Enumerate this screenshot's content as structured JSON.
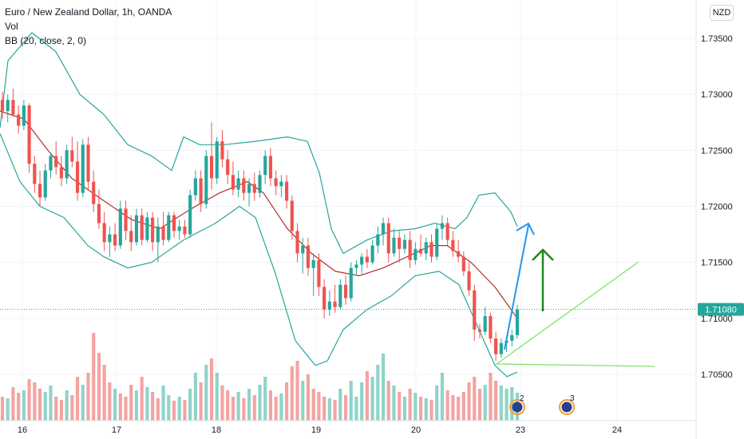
{
  "legend": {
    "title": "Euro / New Zealand Dollar, 1h, OANDA",
    "vol": "Vol",
    "bb": "BB (20, close, 2, 0)"
  },
  "currency_button": "NZD",
  "colors": {
    "up": "#26a69a",
    "down": "#ef5350",
    "vol_up": "#8fd3c9",
    "vol_down": "#f5a3a1",
    "bb_band": "#26a69a",
    "bb_basis": "#b3312b",
    "price_line": "#26a69a",
    "arrow_blue": "#2196f3",
    "arrow_green": "#1b8a1b",
    "line_green": "#7ee56a",
    "badge_blue": "#2a3f8f",
    "badge_orange": "#f0a030"
  },
  "chart_data": {
    "type": "candlestick",
    "symbol": "Euro / New Zealand Dollar",
    "interval": "1h",
    "x_tick_labels": [
      "16",
      "17",
      "18",
      "19",
      "20",
      "23",
      "24"
    ],
    "y_ticks": [
      "1.73500",
      "1.73000",
      "1.72500",
      "1.72000",
      "1.71500",
      "1.71000",
      "1.70500"
    ],
    "ylim": [
      1.7015,
      1.7375
    ],
    "current_price": "1.71080",
    "candles": [
      [
        1.7295,
        1.7302,
        1.7278,
        1.7285
      ],
      [
        1.7285,
        1.73,
        1.7275,
        1.7295
      ],
      [
        1.7295,
        1.7305,
        1.728,
        1.7282
      ],
      [
        1.7282,
        1.729,
        1.7265,
        1.7272
      ],
      [
        1.7272,
        1.7295,
        1.7268,
        1.729
      ],
      [
        1.729,
        1.7292,
        1.723,
        1.7238
      ],
      [
        1.7238,
        1.7245,
        1.7212,
        1.722
      ],
      [
        1.722,
        1.7232,
        1.72,
        1.7208
      ],
      [
        1.7208,
        1.7238,
        1.7205,
        1.7232
      ],
      [
        1.7232,
        1.7248,
        1.7225,
        1.7245
      ],
      [
        1.7245,
        1.7258,
        1.7228,
        1.7235
      ],
      [
        1.7235,
        1.7245,
        1.7218,
        1.7225
      ],
      [
        1.7225,
        1.7255,
        1.722,
        1.725
      ],
      [
        1.725,
        1.7262,
        1.7235,
        1.724
      ],
      [
        1.724,
        1.7258,
        1.7205,
        1.7212
      ],
      [
        1.7212,
        1.726,
        1.7208,
        1.7255
      ],
      [
        1.7255,
        1.7262,
        1.7215,
        1.7222
      ],
      [
        1.7222,
        1.7232,
        1.7195,
        1.7202
      ],
      [
        1.7202,
        1.7215,
        1.718,
        1.7185
      ],
      [
        1.7185,
        1.7195,
        1.716,
        1.7168
      ],
      [
        1.7168,
        1.7182,
        1.7155,
        1.7175
      ],
      [
        1.7175,
        1.7185,
        1.716,
        1.7165
      ],
      [
        1.7165,
        1.7205,
        1.7162,
        1.7198
      ],
      [
        1.7198,
        1.7205,
        1.717,
        1.7178
      ],
      [
        1.7178,
        1.7192,
        1.716,
        1.7168
      ],
      [
        1.7168,
        1.7198,
        1.7165,
        1.7192
      ],
      [
        1.7192,
        1.7198,
        1.7165,
        1.717
      ],
      [
        1.717,
        1.7195,
        1.7168,
        1.719
      ],
      [
        1.719,
        1.7195,
        1.716,
        1.7168
      ],
      [
        1.7168,
        1.719,
        1.715,
        1.7182
      ],
      [
        1.7182,
        1.7195,
        1.7165,
        1.717
      ],
      [
        1.717,
        1.7195,
        1.7168,
        1.7192
      ],
      [
        1.7192,
        1.7195,
        1.7172,
        1.7178
      ],
      [
        1.7178,
        1.7188,
        1.717,
        1.7182
      ],
      [
        1.7182,
        1.7188,
        1.7172,
        1.7175
      ],
      [
        1.7175,
        1.7215,
        1.7172,
        1.721
      ],
      [
        1.721,
        1.7232,
        1.7205,
        1.7225
      ],
      [
        1.7225,
        1.7232,
        1.7195,
        1.7202
      ],
      [
        1.7202,
        1.725,
        1.7198,
        1.7245
      ],
      [
        1.7245,
        1.7275,
        1.7215,
        1.7225
      ],
      [
        1.7225,
        1.7262,
        1.722,
        1.7258
      ],
      [
        1.7258,
        1.7268,
        1.7235,
        1.7242
      ],
      [
        1.7242,
        1.725,
        1.722,
        1.7228
      ],
      [
        1.7228,
        1.724,
        1.721,
        1.7215
      ],
      [
        1.7215,
        1.7232,
        1.7208,
        1.7225
      ],
      [
        1.7225,
        1.7232,
        1.7205,
        1.7212
      ],
      [
        1.7212,
        1.7225,
        1.72,
        1.722
      ],
      [
        1.722,
        1.723,
        1.7205,
        1.7212
      ],
      [
        1.7212,
        1.7232,
        1.7208,
        1.7228
      ],
      [
        1.7228,
        1.725,
        1.722,
        1.7245
      ],
      [
        1.7245,
        1.7252,
        1.7218,
        1.7225
      ],
      [
        1.7225,
        1.7232,
        1.721,
        1.7218
      ],
      [
        1.7218,
        1.7228,
        1.7208,
        1.7222
      ],
      [
        1.7222,
        1.7228,
        1.7198,
        1.7205
      ],
      [
        1.7205,
        1.721,
        1.717,
        1.7178
      ],
      [
        1.7178,
        1.7185,
        1.715,
        1.7158
      ],
      [
        1.7158,
        1.7172,
        1.714,
        1.7165
      ],
      [
        1.7165,
        1.7172,
        1.7138,
        1.7145
      ],
      [
        1.7145,
        1.7158,
        1.712,
        1.7152
      ],
      [
        1.7152,
        1.7158,
        1.712,
        1.7128
      ],
      [
        1.7128,
        1.7135,
        1.71,
        1.7108
      ],
      [
        1.7108,
        1.7125,
        1.7102,
        1.7115
      ],
      [
        1.7115,
        1.713,
        1.7105,
        1.711
      ],
      [
        1.711,
        1.7135,
        1.7108,
        1.713
      ],
      [
        1.713,
        1.7138,
        1.7112,
        1.7118
      ],
      [
        1.7118,
        1.715,
        1.7115,
        1.7145
      ],
      [
        1.7145,
        1.7152,
        1.7138,
        1.7148
      ],
      [
        1.7148,
        1.7158,
        1.714,
        1.7155
      ],
      [
        1.7155,
        1.7162,
        1.7145,
        1.715
      ],
      [
        1.715,
        1.717,
        1.7148,
        1.7165
      ],
      [
        1.7165,
        1.7182,
        1.7158,
        1.7175
      ],
      [
        1.7175,
        1.719,
        1.7165,
        1.7185
      ],
      [
        1.7185,
        1.719,
        1.715,
        1.7158
      ],
      [
        1.7158,
        1.718,
        1.7155,
        1.7172
      ],
      [
        1.7172,
        1.7178,
        1.715,
        1.7162
      ],
      [
        1.7162,
        1.7175,
        1.7158,
        1.717
      ],
      [
        1.717,
        1.7178,
        1.7145,
        1.7152
      ],
      [
        1.7152,
        1.7168,
        1.7148,
        1.7162
      ],
      [
        1.7162,
        1.7175,
        1.7155,
        1.7158
      ],
      [
        1.7158,
        1.7172,
        1.7152,
        1.7168
      ],
      [
        1.7168,
        1.7175,
        1.715,
        1.7155
      ],
      [
        1.7155,
        1.7185,
        1.7152,
        1.718
      ],
      [
        1.718,
        1.7192,
        1.717,
        1.7185
      ],
      [
        1.7185,
        1.719,
        1.7165,
        1.717
      ],
      [
        1.717,
        1.7178,
        1.7155,
        1.716
      ],
      [
        1.716,
        1.717,
        1.715,
        1.7155
      ],
      [
        1.7155,
        1.716,
        1.7138,
        1.7142
      ],
      [
        1.7142,
        1.715,
        1.712,
        1.7125
      ],
      [
        1.7125,
        1.713,
        1.708,
        1.709
      ],
      [
        1.709,
        1.7095,
        1.7082,
        1.7088
      ],
      [
        1.7088,
        1.711,
        1.7085,
        1.7102
      ],
      [
        1.7102,
        1.7105,
        1.7078,
        1.7082
      ],
      [
        1.7082,
        1.7088,
        1.7062,
        1.7068
      ],
      [
        1.7068,
        1.7082,
        1.7065,
        1.7078
      ],
      [
        1.7078,
        1.7085,
        1.707,
        1.708
      ],
      [
        1.708,
        1.709,
        1.7075,
        1.7085
      ],
      [
        1.7085,
        1.7112,
        1.7082,
        1.7108
      ]
    ],
    "volume": [
      [
        30,
        0
      ],
      [
        28,
        1
      ],
      [
        42,
        0
      ],
      [
        35,
        0
      ],
      [
        38,
        1
      ],
      [
        52,
        0
      ],
      [
        48,
        0
      ],
      [
        40,
        0
      ],
      [
        36,
        1
      ],
      [
        44,
        1
      ],
      [
        30,
        0
      ],
      [
        26,
        0
      ],
      [
        38,
        1
      ],
      [
        32,
        0
      ],
      [
        55,
        0
      ],
      [
        45,
        1
      ],
      [
        60,
        0
      ],
      [
        110,
        0
      ],
      [
        85,
        0
      ],
      [
        70,
        0
      ],
      [
        48,
        0
      ],
      [
        40,
        1
      ],
      [
        34,
        0
      ],
      [
        30,
        0
      ],
      [
        45,
        0
      ],
      [
        38,
        1
      ],
      [
        55,
        0
      ],
      [
        42,
        1
      ],
      [
        36,
        0
      ],
      [
        28,
        0
      ],
      [
        44,
        1
      ],
      [
        32,
        1
      ],
      [
        25,
        0
      ],
      [
        30,
        1
      ],
      [
        26,
        0
      ],
      [
        40,
        1
      ],
      [
        60,
        1
      ],
      [
        48,
        0
      ],
      [
        70,
        1
      ],
      [
        78,
        0
      ],
      [
        60,
        1
      ],
      [
        44,
        0
      ],
      [
        38,
        0
      ],
      [
        30,
        0
      ],
      [
        36,
        1
      ],
      [
        28,
        0
      ],
      [
        40,
        1
      ],
      [
        32,
        0
      ],
      [
        45,
        1
      ],
      [
        55,
        1
      ],
      [
        38,
        0
      ],
      [
        30,
        0
      ],
      [
        34,
        1
      ],
      [
        48,
        0
      ],
      [
        68,
        0
      ],
      [
        75,
        0
      ],
      [
        50,
        1
      ],
      [
        58,
        0
      ],
      [
        40,
        0
      ],
      [
        36,
        0
      ],
      [
        30,
        0
      ],
      [
        28,
        1
      ],
      [
        26,
        0
      ],
      [
        40,
        1
      ],
      [
        32,
        0
      ],
      [
        50,
        1
      ],
      [
        30,
        1
      ],
      [
        48,
        1
      ],
      [
        62,
        0
      ],
      [
        55,
        1
      ],
      [
        70,
        1
      ],
      [
        84,
        1
      ],
      [
        50,
        0
      ],
      [
        44,
        1
      ],
      [
        36,
        0
      ],
      [
        30,
        1
      ],
      [
        40,
        0
      ],
      [
        35,
        1
      ],
      [
        30,
        0
      ],
      [
        28,
        1
      ],
      [
        26,
        0
      ],
      [
        44,
        1
      ],
      [
        60,
        1
      ],
      [
        38,
        0
      ],
      [
        32,
        0
      ],
      [
        30,
        0
      ],
      [
        36,
        0
      ],
      [
        48,
        0
      ],
      [
        55,
        0
      ],
      [
        40,
        0
      ],
      [
        45,
        1
      ],
      [
        60,
        0
      ],
      [
        50,
        0
      ],
      [
        44,
        1
      ],
      [
        40,
        1
      ],
      [
        42,
        1
      ],
      [
        35,
        1
      ]
    ],
    "bb_upper": [
      [
        0,
        1.727
      ],
      [
        10,
        1.733
      ],
      [
        40,
        1.7355
      ],
      [
        70,
        1.7338
      ],
      [
        100,
        1.73
      ],
      [
        130,
        1.7282
      ],
      [
        160,
        1.7255
      ],
      [
        190,
        1.7245
      ],
      [
        215,
        1.7232
      ],
      [
        230,
        1.7262
      ],
      [
        250,
        1.7255
      ],
      [
        280,
        1.7255
      ],
      [
        320,
        1.7258
      ],
      [
        360,
        1.7262
      ],
      [
        385,
        1.7258
      ],
      [
        400,
        1.723
      ],
      [
        415,
        1.718
      ],
      [
        430,
        1.7158
      ],
      [
        460,
        1.717
      ],
      [
        490,
        1.7178
      ],
      [
        520,
        1.718
      ],
      [
        545,
        1.7185
      ],
      [
        570,
        1.718
      ],
      [
        585,
        1.719
      ],
      [
        600,
        1.721
      ],
      [
        620,
        1.7212
      ],
      [
        640,
        1.7195
      ],
      [
        648,
        1.7182
      ]
    ],
    "bb_basis": [
      [
        0,
        1.7285
      ],
      [
        30,
        1.7278
      ],
      [
        60,
        1.725
      ],
      [
        90,
        1.7225
      ],
      [
        130,
        1.7205
      ],
      [
        165,
        1.7188
      ],
      [
        200,
        1.718
      ],
      [
        240,
        1.7198
      ],
      [
        275,
        1.7212
      ],
      [
        310,
        1.7222
      ],
      [
        330,
        1.7212
      ],
      [
        360,
        1.718
      ],
      [
        390,
        1.7158
      ],
      [
        420,
        1.7142
      ],
      [
        450,
        1.7138
      ],
      [
        480,
        1.7145
      ],
      [
        510,
        1.7155
      ],
      [
        540,
        1.7165
      ],
      [
        560,
        1.7165
      ],
      [
        590,
        1.715
      ],
      [
        620,
        1.7128
      ],
      [
        648,
        1.71
      ]
    ],
    "bb_lower": [
      [
        0,
        1.7265
      ],
      [
        25,
        1.7222
      ],
      [
        50,
        1.72
      ],
      [
        80,
        1.719
      ],
      [
        110,
        1.7165
      ],
      [
        130,
        1.7155
      ],
      [
        160,
        1.7145
      ],
      [
        190,
        1.715
      ],
      [
        230,
        1.717
      ],
      [
        270,
        1.7185
      ],
      [
        300,
        1.72
      ],
      [
        320,
        1.719
      ],
      [
        345,
        1.714
      ],
      [
        370,
        1.708
      ],
      [
        395,
        1.7058
      ],
      [
        410,
        1.7062
      ],
      [
        430,
        1.709
      ],
      [
        460,
        1.7108
      ],
      [
        490,
        1.712
      ],
      [
        520,
        1.7138
      ],
      [
        550,
        1.7142
      ],
      [
        575,
        1.713
      ],
      [
        600,
        1.709
      ],
      [
        620,
        1.7058
      ],
      [
        635,
        1.7048
      ],
      [
        648,
        1.7052
      ]
    ]
  },
  "annotations": {
    "badges": [
      {
        "label": "2"
      },
      {
        "label": "3"
      }
    ]
  }
}
